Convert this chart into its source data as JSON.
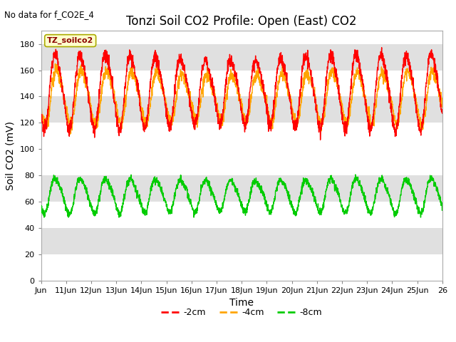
{
  "title": "Tonzi Soil CO2 Profile: Open (East) CO2",
  "no_data_text": "No data for f_CO2E_4",
  "ylabel": "Soil CO2 (mV)",
  "xlabel": "Time",
  "legend_box_label": "TZ_soilco2",
  "ylim": [
    0,
    190
  ],
  "yticks": [
    0,
    20,
    40,
    60,
    80,
    100,
    120,
    140,
    160,
    180
  ],
  "x_tick_labels": [
    "Jun",
    "11Jun",
    "12Jun",
    "13Jun",
    "14Jun",
    "15Jun",
    "16Jun",
    "17Jun",
    "18Jun",
    "19Jun",
    "20Jun",
    "21Jun",
    "22Jun",
    "23Jun",
    "24Jun",
    "25Jun",
    "26"
  ],
  "line_colors": {
    "-2cm": "#ff0000",
    "-4cm": "#ffa500",
    "-8cm": "#00cc00"
  },
  "band_color_light": "#e0e0e0",
  "band_color_white": "#ffffff",
  "legend_box_color": "#ffffcc",
  "legend_box_edge": "#aaaa00",
  "title_fontsize": 12,
  "axis_fontsize": 10,
  "tick_fontsize": 8,
  "figsize": [
    6.4,
    4.8
  ],
  "dpi": 100
}
